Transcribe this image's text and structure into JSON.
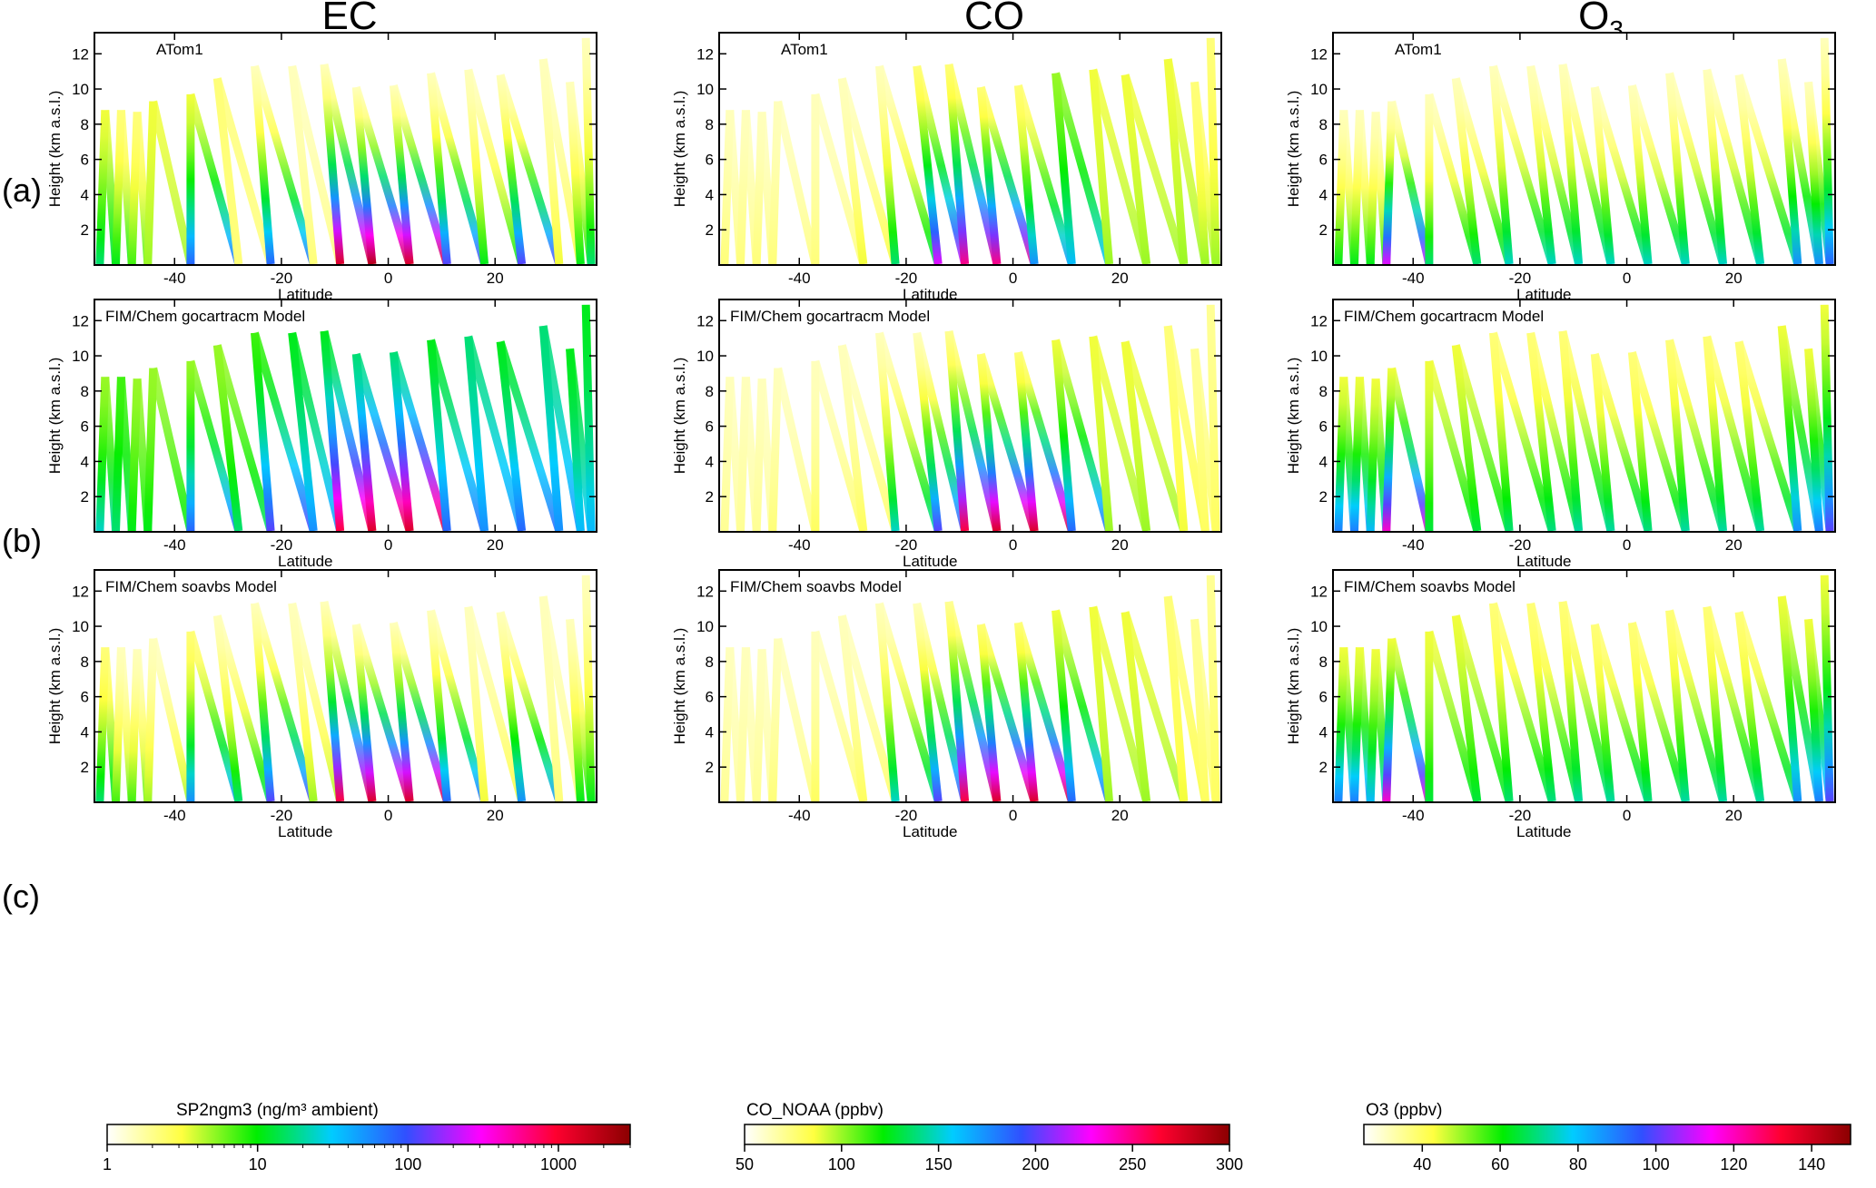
{
  "chart_data": {
    "type": "profile-curtain",
    "columns": [
      {
        "title": "EC",
        "colorbar": {
          "label": "SP2ngm3 (ng/m³ ambient)",
          "scale": "log",
          "range": [
            1,
            3000
          ],
          "ticks": [
            1,
            10,
            100,
            1000
          ],
          "tick_labels": [
            "1",
            "10",
            "100",
            "1000"
          ],
          "colors": [
            "#ffffff",
            "#ffff40",
            "#00ee00",
            "#00ccff",
            "#3050ff",
            "#ff00ff",
            "#ff0030",
            "#8b0000"
          ]
        }
      },
      {
        "title": "CO",
        "colorbar": {
          "label": "CO_NOAA  (ppbv)",
          "scale": "linear",
          "range": [
            50,
            300
          ],
          "ticks": [
            50,
            100,
            150,
            200,
            250,
            300
          ],
          "tick_labels": [
            "50",
            "100",
            "150",
            "200",
            "250",
            "300"
          ],
          "colors": [
            "#ffffff",
            "#ffff40",
            "#00ee00",
            "#00ccff",
            "#3050ff",
            "#ff00ff",
            "#ff0030",
            "#8b0000"
          ]
        }
      },
      {
        "title": "O3",
        "title_main": "O",
        "title_sub": "3",
        "colorbar": {
          "label": "O3  (ppbv)",
          "scale": "linear",
          "range": [
            25,
            150
          ],
          "ticks": [
            40,
            60,
            80,
            100,
            120,
            140
          ],
          "tick_labels": [
            "40",
            "60",
            "80",
            "100",
            "120",
            "140"
          ],
          "colors": [
            "#ffffff",
            "#ffff40",
            "#00ee00",
            "#00ccff",
            "#3050ff",
            "#ff00ff",
            "#ff0030",
            "#8b0000"
          ]
        }
      }
    ],
    "rows": [
      {
        "label": "(a)",
        "panels": [
          "ATom1",
          "ATom1",
          "ATom1"
        ]
      },
      {
        "label": "(b)",
        "panels": [
          "FIM/Chem gocartracm Model",
          "FIM/Chem gocartracm Model",
          "FIM/Chem gocartracm Model"
        ]
      },
      {
        "label": "(c)",
        "panels": [
          "FIM/Chem soavbs Model",
          "FIM/Chem soavbs Model",
          "FIM/Chem soavbs Model"
        ]
      }
    ],
    "xlabel": "Latitude",
    "ylabel": "Height (km a.s.l.)",
    "xlim": [
      -55,
      39
    ],
    "ylim": [
      0,
      13.2
    ],
    "xticks": [
      -40,
      -20,
      0,
      20
    ],
    "yticks": [
      2,
      4,
      6,
      8,
      10,
      12
    ],
    "flight_profiles": [
      {
        "lat_low": -54,
        "lat_high": -53,
        "top_km": 8.8
      },
      {
        "lat_low": -51,
        "lat_high": -50,
        "top_km": 8.8
      },
      {
        "lat_low": -48,
        "lat_high": -47,
        "top_km": 8.7
      },
      {
        "lat_low": -45,
        "lat_high": -44,
        "top_km": 9.3
      },
      {
        "lat_low": -37,
        "lat_high": -37,
        "top_km": 9.7
      },
      {
        "lat_low": -28,
        "lat_high": -32,
        "top_km": 10.6
      },
      {
        "lat_low": -22,
        "lat_high": -25,
        "top_km": 11.3
      },
      {
        "lat_low": -14,
        "lat_high": -18,
        "top_km": 11.3
      },
      {
        "lat_low": -9,
        "lat_high": -12,
        "top_km": 11.4
      },
      {
        "lat_low": -3,
        "lat_high": -6,
        "top_km": 10.1
      },
      {
        "lat_low": 4,
        "lat_high": 1,
        "top_km": 10.2
      },
      {
        "lat_low": 11,
        "lat_high": 8,
        "top_km": 10.9
      },
      {
        "lat_low": 18,
        "lat_high": 15,
        "top_km": 11.1
      },
      {
        "lat_low": 25,
        "lat_high": 21,
        "top_km": 10.8
      },
      {
        "lat_low": 32,
        "lat_high": 29,
        "top_km": 11.7
      },
      {
        "lat_low": 36,
        "lat_high": 34,
        "top_km": 10.4
      },
      {
        "lat_low": 38,
        "lat_high": 37,
        "top_km": 12.9
      }
    ],
    "color_fractions": [
      [
        [
          [
            0.15,
            0.35
          ],
          [
            0.1,
            0.3
          ],
          [
            0.1,
            0.25
          ],
          [
            0.15,
            0.2
          ],
          [
            0.15,
            0.55
          ],
          [
            0.1,
            0.1
          ],
          [
            0.05,
            0.55
          ],
          [
            0.05,
            0.1
          ],
          [
            0.05,
            0.9
          ],
          [
            0.05,
            0.95
          ],
          [
            0.05,
            0.9
          ],
          [
            0.05,
            0.6
          ],
          [
            0.05,
            0.3
          ],
          [
            0.05,
            0.6
          ],
          [
            0.05,
            0.15
          ],
          [
            0.05,
            0.3
          ],
          [
            0.05,
            0.35
          ]
        ],
        [
          [
            0.2,
            0.4
          ],
          [
            0.25,
            0.35
          ],
          [
            0.2,
            0.3
          ],
          [
            0.2,
            0.3
          ],
          [
            0.2,
            0.55
          ],
          [
            0.2,
            0.35
          ],
          [
            0.25,
            0.6
          ],
          [
            0.3,
            0.5
          ],
          [
            0.3,
            0.85
          ],
          [
            0.35,
            0.9
          ],
          [
            0.35,
            0.9
          ],
          [
            0.3,
            0.55
          ],
          [
            0.35,
            0.5
          ],
          [
            0.3,
            0.55
          ],
          [
            0.35,
            0.5
          ],
          [
            0.3,
            0.45
          ],
          [
            0.3,
            0.45
          ]
        ],
        [
          [
            0.1,
            0.35
          ],
          [
            0.05,
            0.25
          ],
          [
            0.05,
            0.25
          ],
          [
            0.05,
            0.2
          ],
          [
            0.1,
            0.5
          ],
          [
            0.05,
            0.35
          ],
          [
            0.05,
            0.6
          ],
          [
            0.05,
            0.2
          ],
          [
            0.05,
            0.85
          ],
          [
            0.05,
            0.9
          ],
          [
            0.05,
            0.9
          ],
          [
            0.05,
            0.55
          ],
          [
            0.05,
            0.15
          ],
          [
            0.05,
            0.5
          ],
          [
            0.05,
            0.1
          ],
          [
            0.05,
            0.3
          ],
          [
            0.05,
            0.3
          ]
        ]
      ],
      [
        [
          [
            0.05,
            0.1
          ],
          [
            0.05,
            0.1
          ],
          [
            0.05,
            0.1
          ],
          [
            0.05,
            0.1
          ],
          [
            0.05,
            0.1
          ],
          [
            0.05,
            0.15
          ],
          [
            0.05,
            0.35
          ],
          [
            0.1,
            0.7
          ],
          [
            0.1,
            0.8
          ],
          [
            0.1,
            0.8
          ],
          [
            0.1,
            0.5
          ],
          [
            0.2,
            0.45
          ],
          [
            0.15,
            0.2
          ],
          [
            0.15,
            0.2
          ],
          [
            0.15,
            0.2
          ],
          [
            0.1,
            0.2
          ],
          [
            0.1,
            0.2
          ]
        ],
        [
          [
            0.05,
            0.08
          ],
          [
            0.05,
            0.08
          ],
          [
            0.05,
            0.08
          ],
          [
            0.05,
            0.1
          ],
          [
            0.05,
            0.12
          ],
          [
            0.05,
            0.12
          ],
          [
            0.05,
            0.4
          ],
          [
            0.05,
            0.6
          ],
          [
            0.08,
            0.85
          ],
          [
            0.1,
            0.9
          ],
          [
            0.1,
            0.9
          ],
          [
            0.15,
            0.55
          ],
          [
            0.15,
            0.2
          ],
          [
            0.15,
            0.2
          ],
          [
            0.1,
            0.15
          ],
          [
            0.08,
            0.12
          ],
          [
            0.08,
            0.12
          ]
        ],
        [
          [
            0.05,
            0.08
          ],
          [
            0.05,
            0.08
          ],
          [
            0.05,
            0.08
          ],
          [
            0.05,
            0.1
          ],
          [
            0.05,
            0.12
          ],
          [
            0.05,
            0.12
          ],
          [
            0.05,
            0.4
          ],
          [
            0.05,
            0.6
          ],
          [
            0.08,
            0.85
          ],
          [
            0.1,
            0.9
          ],
          [
            0.1,
            0.9
          ],
          [
            0.15,
            0.55
          ],
          [
            0.15,
            0.2
          ],
          [
            0.15,
            0.2
          ],
          [
            0.1,
            0.15
          ],
          [
            0.08,
            0.12
          ],
          [
            0.08,
            0.12
          ]
        ]
      ],
      [
        [
          [
            0.05,
            0.3
          ],
          [
            0.05,
            0.3
          ],
          [
            0.05,
            0.3
          ],
          [
            0.05,
            0.7
          ],
          [
            0.05,
            0.35
          ],
          [
            0.05,
            0.35
          ],
          [
            0.05,
            0.4
          ],
          [
            0.05,
            0.4
          ],
          [
            0.05,
            0.4
          ],
          [
            0.05,
            0.4
          ],
          [
            0.05,
            0.4
          ],
          [
            0.05,
            0.4
          ],
          [
            0.05,
            0.4
          ],
          [
            0.05,
            0.4
          ],
          [
            0.05,
            0.5
          ],
          [
            0.05,
            0.5
          ],
          [
            0.05,
            0.55
          ]
        ],
        [
          [
            0.15,
            0.52
          ],
          [
            0.15,
            0.52
          ],
          [
            0.15,
            0.45
          ],
          [
            0.15,
            0.75
          ],
          [
            0.15,
            0.32
          ],
          [
            0.15,
            0.32
          ],
          [
            0.1,
            0.35
          ],
          [
            0.1,
            0.36
          ],
          [
            0.1,
            0.38
          ],
          [
            0.1,
            0.38
          ],
          [
            0.1,
            0.36
          ],
          [
            0.1,
            0.38
          ],
          [
            0.1,
            0.38
          ],
          [
            0.1,
            0.38
          ],
          [
            0.15,
            0.5
          ],
          [
            0.15,
            0.52
          ],
          [
            0.15,
            0.6
          ]
        ],
        [
          [
            0.15,
            0.52
          ],
          [
            0.15,
            0.52
          ],
          [
            0.15,
            0.45
          ],
          [
            0.15,
            0.75
          ],
          [
            0.15,
            0.32
          ],
          [
            0.15,
            0.32
          ],
          [
            0.1,
            0.35
          ],
          [
            0.1,
            0.36
          ],
          [
            0.1,
            0.38
          ],
          [
            0.1,
            0.38
          ],
          [
            0.1,
            0.36
          ],
          [
            0.1,
            0.38
          ],
          [
            0.1,
            0.38
          ],
          [
            0.1,
            0.38
          ],
          [
            0.15,
            0.5
          ],
          [
            0.15,
            0.52
          ],
          [
            0.15,
            0.6
          ]
        ]
      ]
    ]
  }
}
